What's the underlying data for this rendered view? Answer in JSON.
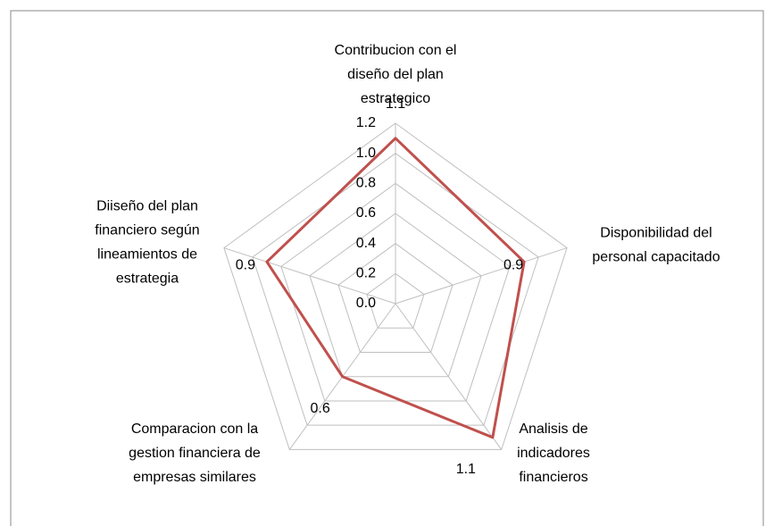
{
  "chart_data": {
    "type": "radar",
    "categories": [
      "Contribucion con el\ndiseño del plan\nestrategico",
      "Disponibilidad del\npersonal capacitado",
      "Analisis de\nindicadores\nfinancieros",
      "Comparacion con la\ngestion financiera de\nempresas similares",
      "Diiseño del plan\nfinanciero según\nlineamientos de\nestrategia"
    ],
    "series": [
      {
        "color": "#c0504d",
        "values": [
          1.1,
          0.9,
          1.1,
          0.6,
          0.9
        ]
      }
    ],
    "ylim": [
      0,
      1.2
    ],
    "yticks": [
      {
        "value": 0,
        "label": "0.0"
      },
      0.2,
      0.4,
      0.6,
      0.8,
      {
        "value": 1,
        "label": "1.0"
      },
      1.2
    ],
    "grid": true
  }
}
